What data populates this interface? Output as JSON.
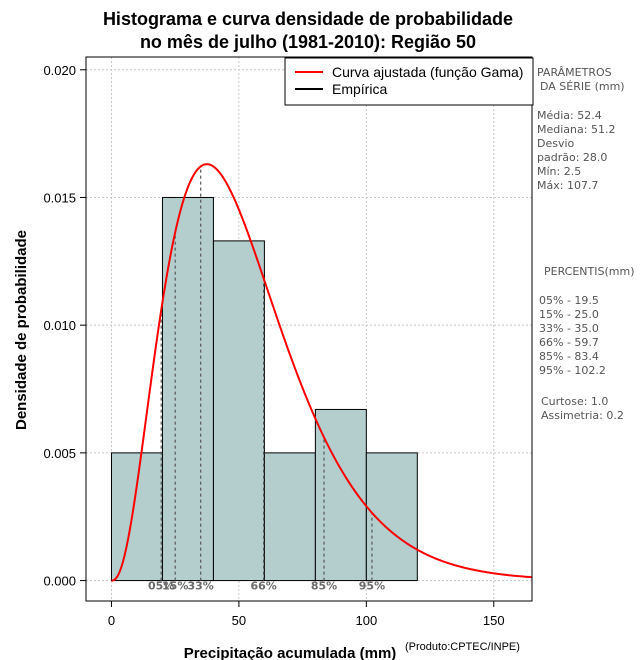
{
  "chart_data": {
    "type": "bar",
    "title": [
      "Histograma e curva densidade de probabilidade",
      "no mês de julho (1981-2010): Região 50"
    ],
    "xlabel": "Precipitação acumulada (mm)",
    "ylabel": "Densidade de probabilidade",
    "credit": "(Produto:CPTEC/INPE)",
    "xlim": [
      -10,
      165
    ],
    "ylim": [
      -0.0008,
      0.0205
    ],
    "x_ticks": [
      0,
      50,
      100,
      150
    ],
    "x_tick_labels": [
      "0",
      "50",
      "100",
      "150"
    ],
    "y_ticks": [
      0.0,
      0.005,
      0.01,
      0.015,
      0.02
    ],
    "y_tick_labels": [
      "0.000",
      "0.005",
      "0.010",
      "0.015",
      "0.020"
    ],
    "grid": true,
    "bins": [
      {
        "x0": 0,
        "x1": 20,
        "density": 0.005
      },
      {
        "x0": 20,
        "x1": 40,
        "density": 0.015
      },
      {
        "x0": 40,
        "x1": 60,
        "density": 0.0133
      },
      {
        "x0": 60,
        "x1": 80,
        "density": 0.005
      },
      {
        "x0": 80,
        "x1": 100,
        "density": 0.0067
      },
      {
        "x0": 100,
        "x1": 120,
        "density": 0.005
      }
    ],
    "bar_color": "#b4cdcd",
    "curve_color": "#ff0000",
    "gamma_fit": {
      "shape": 3.5,
      "rate": 0.0668
    },
    "percentile_lines": [
      {
        "label": "05%",
        "value": 19.5
      },
      {
        "label": "15%",
        "value": 25.0
      },
      {
        "label": "33%",
        "value": 35.0
      },
      {
        "label": "66%",
        "value": 59.7
      },
      {
        "label": "85%",
        "value": 83.4
      },
      {
        "label": "95%",
        "value": 102.2
      }
    ],
    "legend": {
      "position": "top-right",
      "entries": [
        {
          "label": "Curva ajustada (função Gama)",
          "color": "#ff0000"
        },
        {
          "label": "Empírica",
          "color": "#000000"
        }
      ]
    }
  },
  "side_panel": {
    "params_heading": [
      "PARÂMETROS",
      "DA SÉRIE (mm)"
    ],
    "params": [
      "Média:  52.4",
      "Mediana:  51.2",
      "Desvio",
      "padrão:  28.0",
      "Mín:  2.5",
      "Máx:  107.7"
    ],
    "percentis_heading": "PERCENTIS(mm)",
    "percentis": [
      "05% -   19.5",
      "15% -   25.0",
      "33% -   35.0",
      "66% -   59.7",
      "85% -   83.4",
      "95% -   102.2"
    ],
    "extra": [
      "Curtose:  1.0",
      "Assimetria:  0.2"
    ]
  }
}
